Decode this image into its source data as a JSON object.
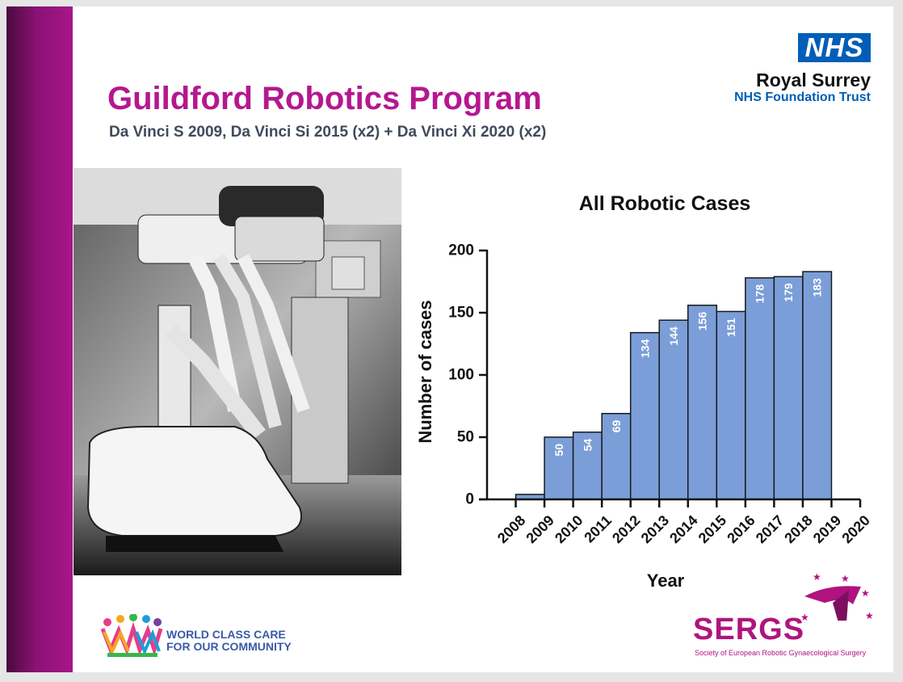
{
  "slide": {
    "title": "Guildford Robotics Program",
    "subtitle": "Da Vinci S 2009, Da Vinci Si 2015 (x2) + Da Vinci Xi 2020 (x2)"
  },
  "logo": {
    "nhs_text": "NHS",
    "trust_name": "Royal Surrey",
    "trust_sub": "NHS Foundation Trust",
    "nhs_color": "#005eb8"
  },
  "footer": {
    "wcc_line1": "WORLD CLASS CARE",
    "wcc_line2": "FOR OUR COMMUNITY",
    "sergs_title": "SERGS",
    "sergs_sub": "Society of European Robotic Gynaecological Surgery"
  },
  "colors": {
    "accent": "#b5178f",
    "bar_fill": "#7b9ed8",
    "bar_stroke": "#1a1a1a"
  },
  "chart_data": {
    "type": "bar",
    "title": "All Robotic Cases",
    "xlabel": "Year",
    "ylabel": "Number of cases",
    "ylim": [
      0,
      200
    ],
    "yticks": [
      0,
      50,
      100,
      150,
      200
    ],
    "categories": [
      "2008",
      "2009",
      "2010",
      "2011",
      "2012",
      "2013",
      "2014",
      "2015",
      "2016",
      "2017",
      "2018",
      "2019",
      "2020"
    ],
    "values": [
      0,
      4,
      50,
      54,
      69,
      134,
      144,
      156,
      151,
      178,
      179,
      183,
      0
    ],
    "data_labels": [
      "",
      "",
      "50",
      "54",
      "69",
      "134",
      "144",
      "156",
      "151",
      "178",
      "179",
      "183",
      ""
    ],
    "grid": false
  }
}
